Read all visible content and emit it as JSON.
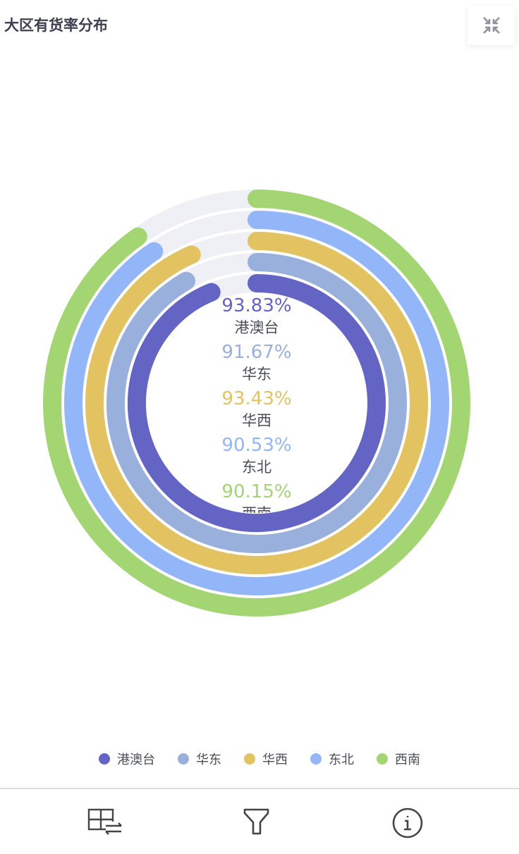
{
  "title": "大区有货率分布",
  "colors": {
    "track": "#eff0f5",
    "label": "#4a4e5a"
  },
  "chart_data": {
    "type": "radial-bar",
    "title": "大区有货率分布",
    "unit": "%",
    "range": [
      0,
      100
    ],
    "legend_position": "bottom",
    "series": [
      {
        "name": "港澳台",
        "value": 93.83,
        "label": "93.83%",
        "color": "#6464c4"
      },
      {
        "name": "华东",
        "value": 91.67,
        "label": "91.67%",
        "color": "#99afdc"
      },
      {
        "name": "华西",
        "value": 93.43,
        "label": "93.43%",
        "color": "#e3c262"
      },
      {
        "name": "东北",
        "value": 90.53,
        "label": "90.53%",
        "color": "#93b6f8"
      },
      {
        "name": "西南",
        "value": 90.15,
        "label": "90.15%",
        "color": "#a3d573"
      }
    ]
  },
  "toolbar": {
    "icons": [
      "table-swap-icon",
      "filter-icon",
      "info-icon"
    ]
  }
}
